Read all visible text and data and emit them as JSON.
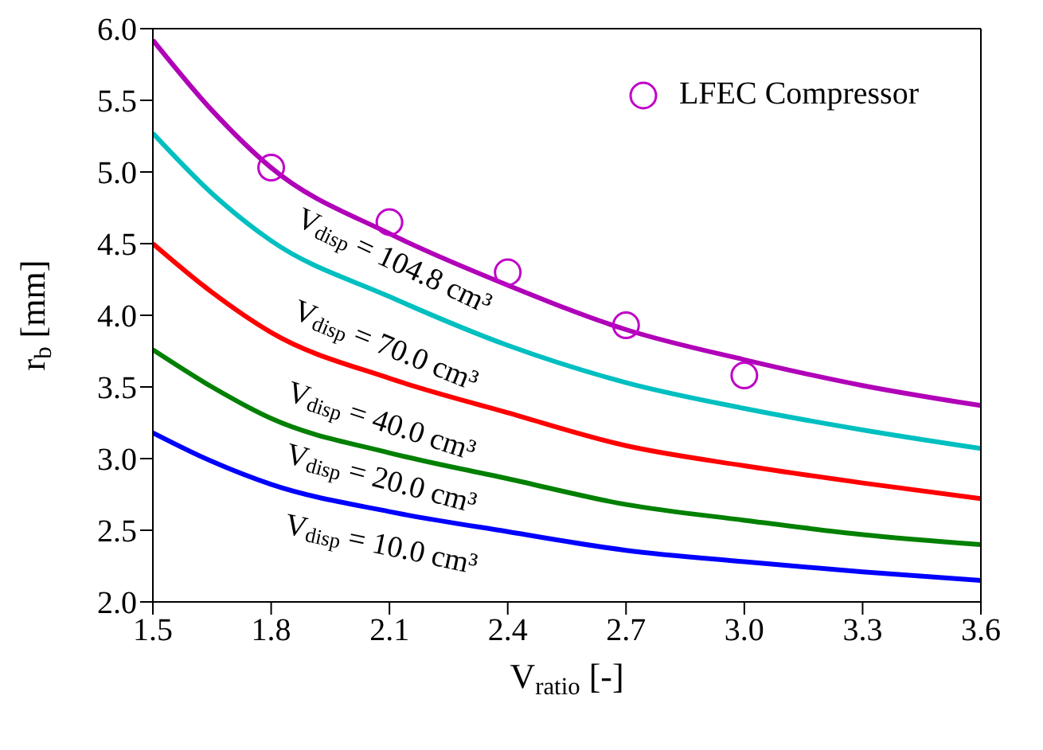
{
  "chart_data": {
    "type": "line",
    "xlabel": "V$_{ratio}$ [-]",
    "ylabel": "r$_{b}$ [mm]",
    "xlim": [
      1.5,
      3.6
    ],
    "xticks": [
      1.5,
      1.8,
      2.1,
      2.4,
      2.7,
      {
        "value": 3,
        "label": "3.0"
      },
      3.3,
      3.6
    ],
    "ylim": [
      2.0,
      6.0
    ],
    "yticks": [
      {
        "value": 2,
        "label": "2.0"
      },
      2.5,
      {
        "value": 3,
        "label": "3.0"
      },
      3.5,
      {
        "value": 4,
        "label": "4.0"
      },
      4.5,
      {
        "value": 5,
        "label": "5.0"
      },
      5.5,
      {
        "value": 6,
        "label": "6.0"
      }
    ],
    "grid": false,
    "legend": "top right",
    "marker": "none",
    "line_style": "solid",
    "x": [
      1.5,
      1.65,
      1.8,
      2.1,
      2.4,
      2.7,
      3.0,
      3.3,
      3.6
    ],
    "series": [
      {
        "color": "#b000b8",
        "values": [
          5.92,
          5.43,
          5.03,
          4.57,
          4.21,
          3.9,
          3.69,
          3.51,
          3.37
        ]
      },
      {
        "color": "#00bfc0",
        "values": [
          5.27,
          4.85,
          4.52,
          4.13,
          3.79,
          3.53,
          3.35,
          3.2,
          3.07
        ]
      },
      {
        "color": "#ff0000",
        "values": [
          4.5,
          4.16,
          3.88,
          3.56,
          3.32,
          3.09,
          2.95,
          2.83,
          2.72
        ]
      },
      {
        "color": "#008000",
        "values": [
          3.76,
          3.5,
          3.28,
          3.04,
          2.86,
          2.68,
          2.57,
          2.47,
          2.4
        ]
      },
      {
        "color": "#0000ff",
        "values": [
          3.18,
          2.98,
          2.82,
          2.63,
          2.49,
          2.36,
          2.28,
          2.21,
          2.15
        ]
      },
      {
        "type": "scatter",
        "name": "LFEC Compressor",
        "color": "#c000c8",
        "marker": "circle",
        "x": [
          1.8,
          2.1,
          2.4,
          2.7,
          3.0
        ],
        "values": [
          5.03,
          4.65,
          4.3,
          3.93,
          3.58
        ]
      }
    ],
    "annotations": [
      "V$_{disp}$ = 104.8 cm³",
      "V$_{disp}$ = 70.0 cm³",
      "V$_{disp}$ = 40.0 cm³",
      "V$_{disp}$ = 20.0 cm³",
      "V$_{disp}$ = 10.0 cm³"
    ]
  }
}
